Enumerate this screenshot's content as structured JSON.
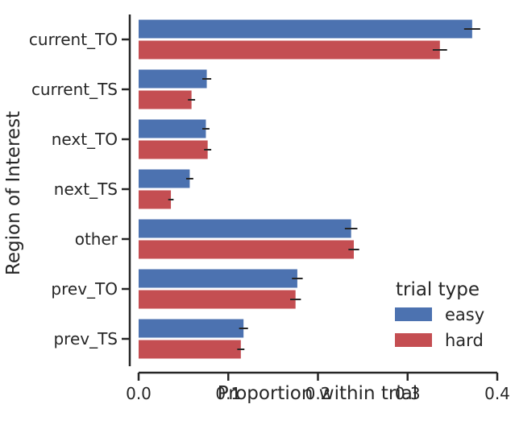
{
  "chart_data": {
    "type": "bar",
    "orientation": "horizontal",
    "title": "",
    "xlabel": "Proportion within trial",
    "ylabel": "Region of Interest",
    "xlim": [
      0.0,
      0.4
    ],
    "xticks": [
      "0.0",
      "0.1",
      "0.2",
      "0.3",
      "0.4"
    ],
    "categories": [
      "current_TO",
      "current_TS",
      "next_TO",
      "next_TS",
      "other",
      "prev_TO",
      "prev_TS"
    ],
    "series": [
      {
        "name": "easy",
        "color": "#4c72b0",
        "values": [
          0.372,
          0.076,
          0.075,
          0.057,
          0.237,
          0.177,
          0.117
        ],
        "err": [
          0.009,
          0.005,
          0.004,
          0.004,
          0.007,
          0.006,
          0.005
        ]
      },
      {
        "name": "hard",
        "color": "#c44e52",
        "values": [
          0.336,
          0.059,
          0.077,
          0.036,
          0.24,
          0.175,
          0.114
        ],
        "err": [
          0.008,
          0.004,
          0.004,
          0.003,
          0.006,
          0.006,
          0.004
        ]
      }
    ],
    "grid": false,
    "legend": {
      "title": "trial type",
      "placement": "lower-right",
      "entries": [
        "easy",
        "hard"
      ]
    }
  }
}
